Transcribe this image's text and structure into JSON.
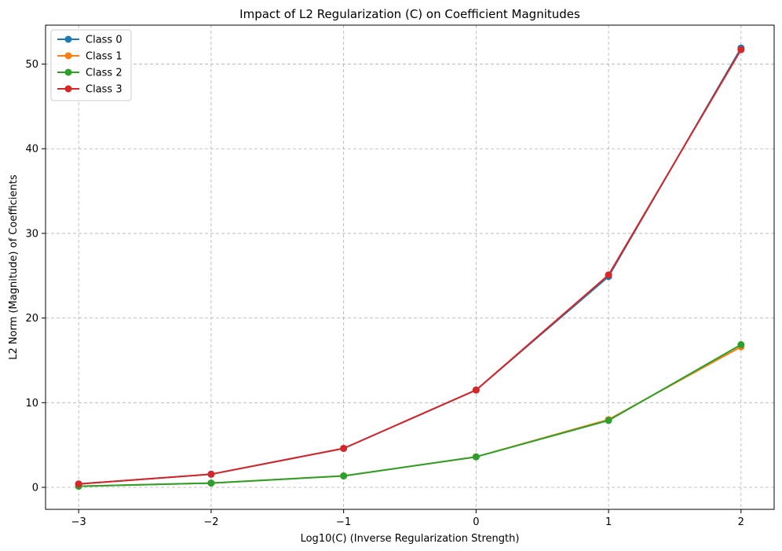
{
  "chart_data": {
    "type": "line",
    "title": "Impact of L2 Regularization (C) on Coefficient Magnitudes",
    "xlabel": "Log10(C) (Inverse Regularization Strength)",
    "ylabel": "L2 Norm (Magnitude) of Coefficients",
    "x": [
      -3,
      -2,
      -1,
      0,
      1,
      2
    ],
    "xlim": [
      -3.25,
      2.25
    ],
    "ylim": [
      -2.6,
      54.6
    ],
    "xticks": [
      -3,
      -2,
      -1,
      0,
      1,
      2
    ],
    "xtick_labels": [
      "−3",
      "−2",
      "−1",
      "0",
      "1",
      "2"
    ],
    "yticks": [
      0,
      10,
      20,
      30,
      40,
      50
    ],
    "ytick_labels": [
      "0",
      "10",
      "20",
      "30",
      "40",
      "50"
    ],
    "grid": true,
    "legend_position": "top-left",
    "series": [
      {
        "name": "Class 0",
        "color": "#1f77b4",
        "values": [
          0.4,
          1.55,
          4.6,
          11.5,
          24.9,
          51.9
        ]
      },
      {
        "name": "Class 1",
        "color": "#ff7f0e",
        "values": [
          0.13,
          0.5,
          1.35,
          3.6,
          8.0,
          16.6
        ]
      },
      {
        "name": "Class 2",
        "color": "#2ca02c",
        "values": [
          0.13,
          0.5,
          1.35,
          3.6,
          7.9,
          16.85
        ]
      },
      {
        "name": "Class 3",
        "color": "#d62728",
        "values": [
          0.4,
          1.55,
          4.6,
          11.5,
          25.1,
          51.7
        ]
      }
    ]
  }
}
